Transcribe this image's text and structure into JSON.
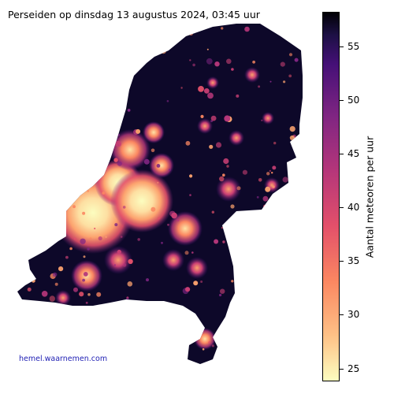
{
  "title": "Perseiden op dinsdag 13 augustus 2024, 03:45 uur",
  "credit": "hemel.waarnemen.com",
  "colorbar": {
    "label": "Aantal meteoren per uur",
    "min": 23.8,
    "max": 58.2,
    "ticks": [
      "25",
      "30",
      "35",
      "40",
      "45",
      "50",
      "55"
    ],
    "tick_values": [
      25,
      30,
      35,
      40,
      45,
      50,
      55
    ],
    "colormap": "magma_r",
    "low_color": "#fcfdbf",
    "high_color": "#000004"
  },
  "map": {
    "region": "Nederland",
    "bright_regions": [
      "Randstad",
      "Den Haag",
      "Amsterdam",
      "Utrecht",
      "Rotterdam",
      "Zuid-Limburg"
    ]
  }
}
